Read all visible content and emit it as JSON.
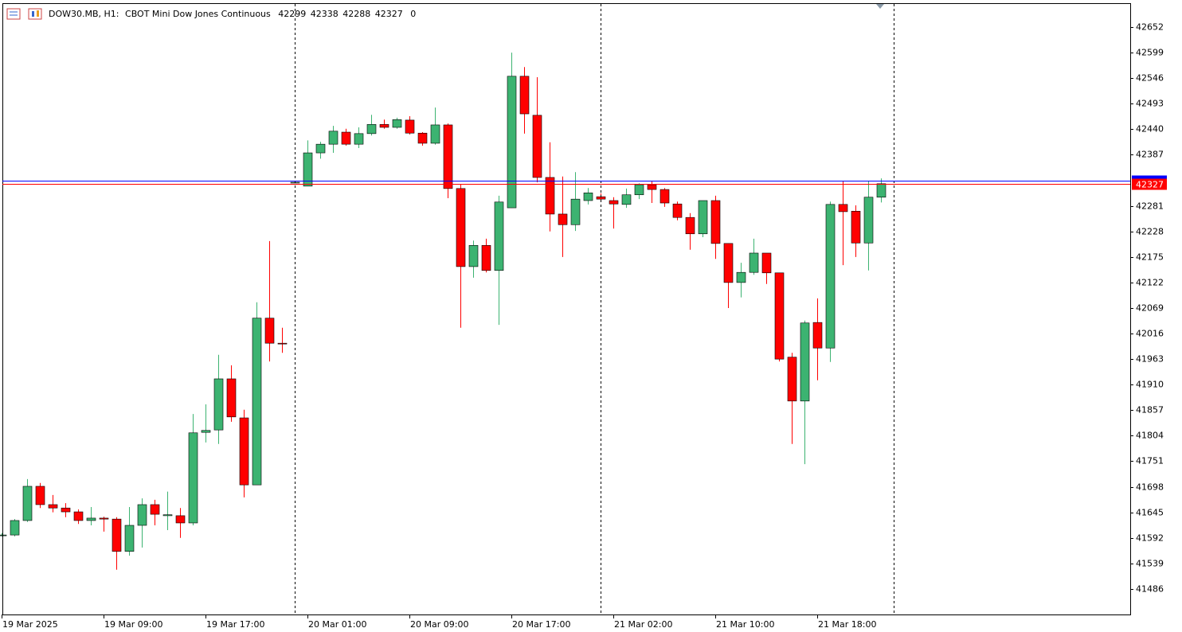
{
  "chart_data": {
    "type": "candlestick",
    "symbol": "DOW30.MB, H1:",
    "description": "CBOT Mini Dow Jones Continuous",
    "header_extra": 0,
    "categories": [
      "19 Mar 2025",
      null,
      null,
      null,
      null,
      null,
      null,
      null,
      "19 Mar 09:00",
      null,
      null,
      null,
      null,
      null,
      null,
      null,
      "19 Mar 17:00",
      null,
      null,
      null,
      null,
      null,
      null,
      null,
      "20 Mar 01:00",
      null,
      null,
      null,
      null,
      null,
      null,
      null,
      "20 Mar 09:00",
      null,
      null,
      null,
      null,
      null,
      null,
      null,
      "20 Mar 17:00",
      null,
      null,
      null,
      null,
      null,
      null,
      null,
      "21 Mar 02:00",
      null,
      null,
      null,
      null,
      null,
      null,
      null,
      "21 Mar 10:00",
      null,
      null,
      null,
      null,
      null,
      null,
      null,
      "21 Mar 18:00",
      null,
      null,
      null,
      null,
      null
    ],
    "open": [
      41598,
      41598,
      41628,
      41699,
      41661,
      41654,
      41646,
      41628,
      41633,
      41631,
      41564,
      41618,
      41661,
      41638,
      41638,
      41623,
      41811,
      41816,
      41922,
      41841,
      41702,
      42048,
      41996,
      42330,
      42322,
      42391,
      42409,
      42434,
      42409,
      42431,
      42450,
      42444,
      42459,
      42432,
      42411,
      42449,
      42317,
      42155,
      42199,
      42147,
      42277,
      42550,
      42469,
      42340,
      42264,
      42242,
      42292,
      42300,
      42292,
      42284,
      42304,
      42325,
      42315,
      42285,
      42257,
      42223,
      42292,
      42203,
      42122,
      42143,
      42183,
      42142,
      41967,
      41876,
      42039,
      41986,
      42284,
      42270,
      42204,
      42299
    ],
    "high": [
      41602,
      41631,
      41714,
      41706,
      41681,
      41664,
      41651,
      41656,
      41636,
      41635,
      41656,
      41674,
      41671,
      41688,
      41654,
      41849,
      41869,
      41972,
      41950,
      41858,
      42081,
      42208,
      42028,
      42330,
      42417,
      42414,
      42447,
      42441,
      42444,
      42470,
      42460,
      42464,
      42467,
      42434,
      42485,
      42452,
      42325,
      42209,
      42213,
      42302,
      42599,
      42569,
      42548,
      42413,
      42342,
      42351,
      42318,
      42307,
      42299,
      42317,
      42328,
      42332,
      42318,
      42290,
      42266,
      42292,
      42302,
      42203,
      42163,
      42213,
      42183,
      42142,
      41976,
      42043,
      42089,
      42290,
      42332,
      42282,
      42332,
      42338
    ],
    "low": [
      41595,
      41595,
      41625,
      41654,
      41645,
      41635,
      41621,
      41618,
      41605,
      41526,
      41555,
      41572,
      41618,
      41608,
      41592,
      41618,
      41790,
      41787,
      41833,
      41676,
      41702,
      41958,
      41976,
      42330,
      42322,
      42379,
      42391,
      42406,
      42401,
      42427,
      42441,
      42441,
      42429,
      42406,
      42408,
      42297,
      42028,
      42132,
      42143,
      42034,
      42277,
      42431,
      42330,
      42228,
      42175,
      42229,
      42284,
      42292,
      42234,
      42277,
      42295,
      42287,
      42279,
      42251,
      42190,
      42216,
      42171,
      42069,
      42091,
      42138,
      42119,
      41958,
      41787,
      41745,
      41919,
      41957,
      42158,
      42175,
      42147,
      42288
    ],
    "close": [
      41598,
      41628,
      41699,
      41661,
      41654,
      41646,
      41628,
      41633,
      41631,
      41564,
      41618,
      41661,
      41641,
      41640,
      41623,
      41810,
      41815,
      41922,
      41843,
      41702,
      42048,
      41996,
      41995,
      42330,
      42391,
      42409,
      42436,
      42409,
      42431,
      42450,
      42444,
      42460,
      42432,
      42411,
      42449,
      42317,
      42155,
      42199,
      42147,
      42289,
      42550,
      42472,
      42340,
      42264,
      42242,
      42295,
      42308,
      42295,
      42285,
      42304,
      42325,
      42315,
      42287,
      42257,
      42223,
      42292,
      42203,
      42122,
      42143,
      42183,
      42142,
      41963,
      41876,
      42038,
      41986,
      42284,
      42269,
      42204,
      42299,
      42327
    ],
    "up_color": "#3cb371",
    "down_color": "#ff0000",
    "ylim": [
      41433,
      42700
    ],
    "yticks": [
      41486,
      41539,
      41592,
      41645,
      41698,
      41751,
      41804,
      41857,
      41910,
      41963,
      42016,
      42069,
      42122,
      42175,
      42228,
      42281,
      42387,
      42440,
      42493,
      42546,
      42599,
      42652
    ],
    "ask_line": {
      "value": 42333,
      "color": "#0000ff"
    },
    "bid_color": "#ff0000"
  }
}
